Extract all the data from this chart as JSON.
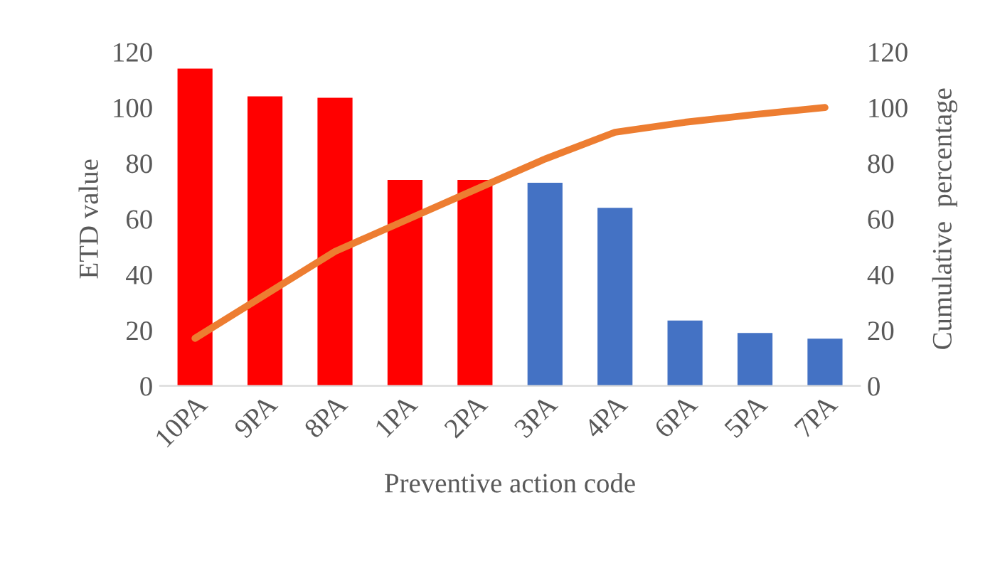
{
  "chart_data": {
    "type": "bar",
    "xlabel": "Preventive action code",
    "ylabel": "ETD value",
    "y2label": "Cumulative  percentage",
    "categories": [
      "10PA",
      "9PA",
      "8PA",
      "1PA",
      "2PA",
      "3PA",
      "4PA",
      "6PA",
      "5PA",
      "7PA"
    ],
    "series": [
      {
        "colors": [
          "#ff0000",
          "#ff0000",
          "#ff0000",
          "#ff0000",
          "#ff0000",
          "#4472c4",
          "#4472c4",
          "#4472c4",
          "#4472c4",
          "#4472c4"
        ],
        "values": [
          114,
          104,
          103.5,
          74,
          74,
          73,
          64,
          23.5,
          19,
          17
        ]
      },
      {
        "type": "line",
        "axis": "y2",
        "color": "#ed7d31",
        "values": [
          17.1,
          32.7,
          48.3,
          59.4,
          70.5,
          81.5,
          91.1,
          94.7,
          97.5,
          100
        ]
      }
    ],
    "ylim": [
      0,
      120
    ],
    "yticks": [
      0,
      20,
      40,
      60,
      80,
      100,
      120
    ],
    "y2lim": [
      0,
      120
    ],
    "y2ticks": [
      0,
      20,
      40,
      60,
      80,
      100,
      120
    ],
    "grid": false,
    "legend": false
  }
}
